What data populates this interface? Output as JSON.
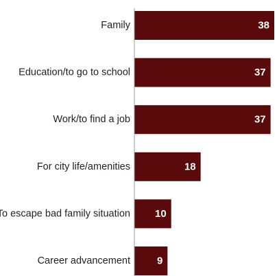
{
  "chart_data": {
    "type": "bar",
    "orientation": "horizontal",
    "categories": [
      "Family",
      "Education/to go to school",
      "Work/to find a job",
      "For city life/amenities",
      "To escape bad family situation",
      "Career advancement"
    ],
    "values": [
      38,
      37,
      37,
      18,
      10,
      9
    ],
    "data_labels": [
      "38",
      "37",
      "37",
      "18",
      "10",
      "9"
    ],
    "xlim": [
      0,
      38
    ],
    "grid": false,
    "legend": "none",
    "bar_color": "#5a0a0a"
  }
}
